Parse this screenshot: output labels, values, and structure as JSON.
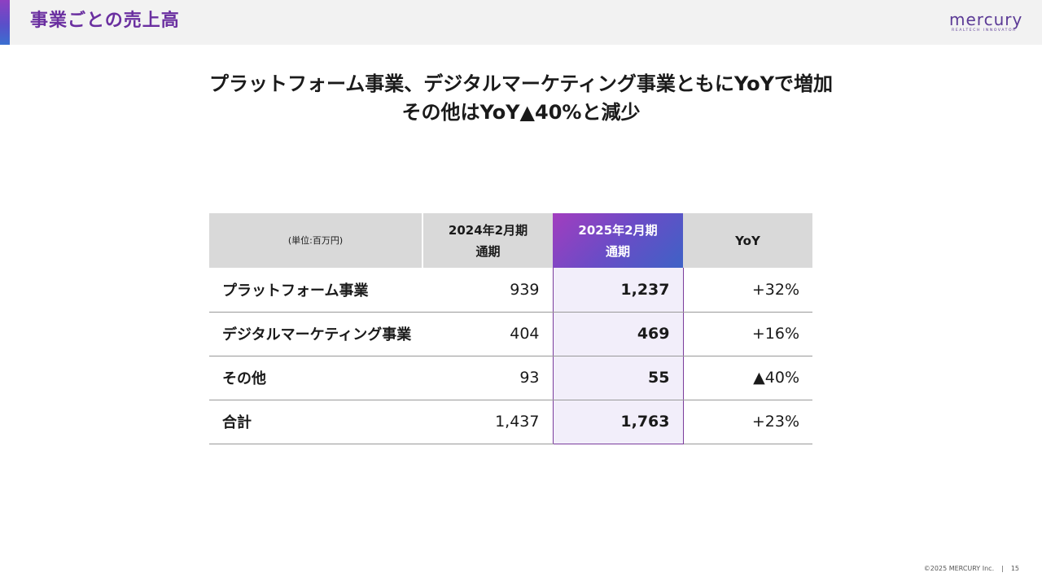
{
  "header": {
    "title": "事業ごとの売上高",
    "logo_word": "mercury",
    "logo_tagline": "REALTECH INNOVATOR"
  },
  "headline": {
    "line1": "プラットフォーム事業、デジタルマーケティング事業ともにYoYで増加",
    "line2": "その他はYoY▲40%と減少"
  },
  "colors": {
    "accent": "#6a2fa0",
    "highlight_gradient_start": "#a23dbf",
    "highlight_gradient_end": "#3e62c6",
    "highlight_fill": "#f2eefa"
  },
  "table": {
    "unit_label": "(単位:百万円)",
    "headers": [
      {
        "line1": "2024年2月期",
        "line2": "通期"
      },
      {
        "line1": "2025年2月期",
        "line2": "通期"
      },
      {
        "line1": "YoY",
        "line2": ""
      }
    ],
    "rows": [
      {
        "name": "プラットフォーム事業",
        "fy2024": "939",
        "fy2025": "1,237",
        "yoy": "+32%"
      },
      {
        "name": "デジタルマーケティング事業",
        "fy2024": "404",
        "fy2025": "469",
        "yoy": "+16%"
      },
      {
        "name": "その他",
        "fy2024": "93",
        "fy2025": "55",
        "yoy": "▲40%"
      },
      {
        "name": "合計",
        "fy2024": "1,437",
        "fy2025": "1,763",
        "yoy": "+23%"
      }
    ]
  },
  "footer": {
    "copyright": "©2025 MERCURY Inc.",
    "separator": "|",
    "page_number": "15"
  }
}
